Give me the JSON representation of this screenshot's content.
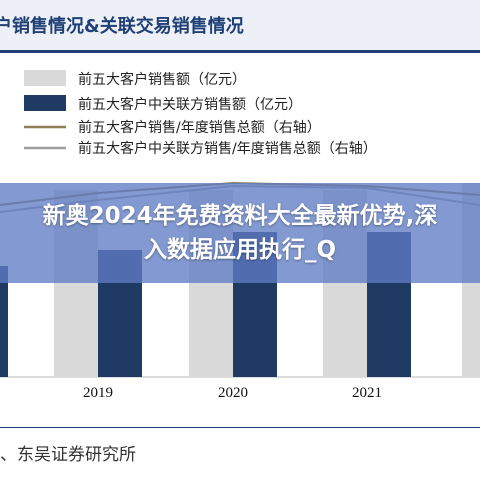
{
  "page": {
    "title": "户销售情况&关联交易销售情况",
    "overlay_text": "新奥2024年免费资料大全最新优势,深入数据应用执行_Q",
    "source": "、东吴证券研究所",
    "colors": {
      "top5_bar": "#d9d9d9",
      "related_bar": "#1f3a63",
      "top5_ratio_line": "#8e7d55",
      "related_ratio_line": "#a0a0a0",
      "title_text": "#1f3f76",
      "banner": "#607cc4"
    }
  },
  "chart_data": {
    "type": "bar",
    "categories": [
      "2019",
      "2020",
      "2021"
    ],
    "series": [
      {
        "name": "前五大客户销售额（亿元）",
        "kind": "bar"
      },
      {
        "name": "前五大客户中关联方销售额（亿元）",
        "kind": "bar"
      },
      {
        "name": "前五大客户销售/年度销售总额（右轴）",
        "kind": "line"
      },
      {
        "name": "前五大客户中关联方销售/年度销售总额（右轴）",
        "kind": "line"
      }
    ],
    "legend_position": "top-left",
    "grid": false
  }
}
